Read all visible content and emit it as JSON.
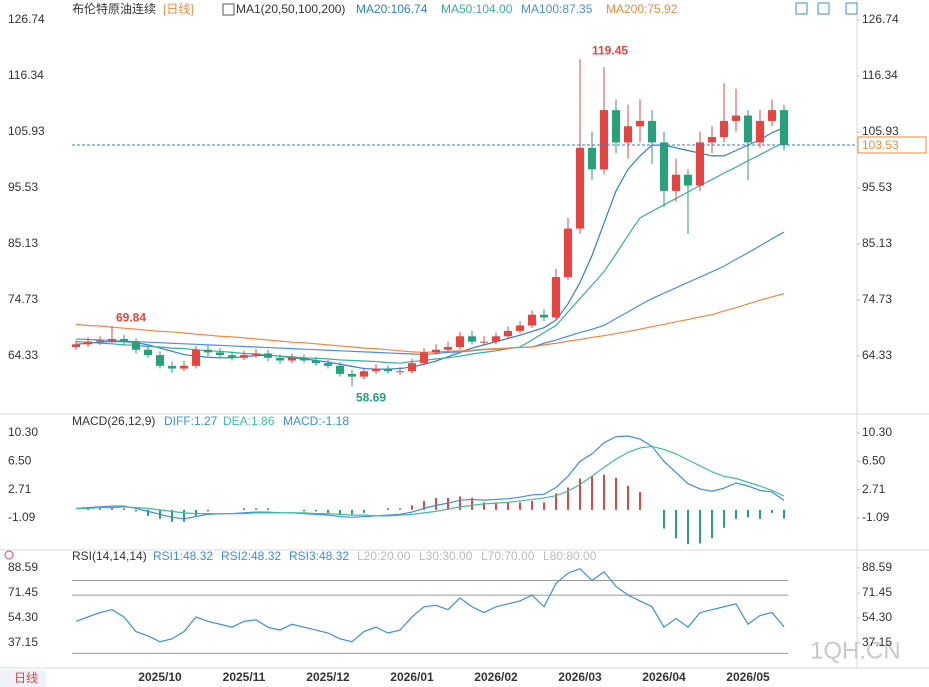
{
  "chart_data": {
    "type": "candlestick",
    "title": "布伦特原油连续",
    "period": "[日线]",
    "indicator": "MA1(20,50,100,200)",
    "categories": [
      null,
      null,
      null,
      null,
      null,
      null,
      null,
      "2025/10",
      null,
      null,
      null,
      null,
      null,
      null,
      "2025/11",
      null,
      null,
      null,
      null,
      null,
      null,
      "2025/12",
      null,
      null,
      null,
      null,
      null,
      null,
      "2026/01",
      null,
      null,
      null,
      null,
      null,
      null,
      "2026/02",
      null,
      null,
      null,
      null,
      null,
      null,
      "2026/03",
      null,
      null,
      null,
      null,
      null,
      null,
      "2026/04",
      null,
      null,
      null,
      null,
      null,
      null,
      "2026/05",
      null,
      null,
      null
    ],
    "open": [
      66,
      66.5,
      67,
      67.2,
      67.5,
      67,
      65.5,
      64.5,
      62.5,
      62,
      62.5,
      65.5,
      65,
      64.5,
      64,
      64.5,
      64.8,
      64,
      63.5,
      64,
      63.5,
      63,
      62.5,
      61,
      60.5,
      61.5,
      62,
      61.5,
      61.5,
      63,
      65,
      65.5,
      66,
      68,
      67,
      67,
      68,
      69,
      70,
      72,
      71.5,
      79,
      88,
      103,
      99,
      110,
      104,
      107,
      108,
      104,
      95,
      98,
      96,
      104,
      105,
      108,
      109,
      104,
      108,
      110
    ],
    "high": [
      67.2,
      67.8,
      68,
      69.84,
      68.2,
      67.6,
      66.2,
      65.2,
      63.3,
      63.4,
      66.2,
      66.3,
      65.8,
      65.2,
      65.3,
      65.6,
      65.5,
      64.6,
      64.8,
      64.6,
      64.2,
      63.6,
      63.2,
      61.8,
      62.2,
      62.8,
      62.6,
      62.3,
      63.8,
      65.8,
      66.5,
      67,
      68.8,
      69,
      68,
      68.7,
      69.8,
      70.8,
      72.8,
      73,
      80.5,
      90,
      119.45,
      106,
      118,
      112,
      111,
      112,
      110,
      106,
      101,
      99,
      106,
      107,
      115,
      114,
      110,
      110,
      112,
      111
    ],
    "low": [
      65.5,
      66,
      66.4,
      66.8,
      66.4,
      64.8,
      64,
      62,
      61.2,
      61.5,
      62,
      64.3,
      64,
      63.5,
      63.6,
      64,
      63.4,
      62.9,
      63,
      63,
      62.5,
      62,
      60.5,
      58.69,
      60,
      61,
      61,
      60.8,
      61,
      62.6,
      64.6,
      65,
      65.5,
      66.5,
      66.4,
      66.5,
      67.4,
      68.5,
      69.5,
      70.8,
      71,
      78.5,
      87,
      97,
      98,
      102,
      101,
      104,
      100,
      92,
      93,
      87,
      95,
      102,
      104,
      106,
      97,
      103,
      107,
      102.5
    ],
    "close": [
      66.5,
      67,
      67.2,
      67.5,
      67,
      65.5,
      64.5,
      62.5,
      62,
      62.5,
      65.5,
      65,
      64.5,
      64,
      64.5,
      64.8,
      64,
      63.5,
      64,
      63.5,
      63,
      62.5,
      61,
      60.5,
      61.5,
      62,
      61.5,
      61.5,
      63,
      65,
      65.5,
      66,
      68,
      67,
      67,
      68,
      69,
      70,
      72,
      71.5,
      79,
      88,
      103,
      99,
      110,
      104,
      107,
      108,
      104,
      95,
      98,
      96,
      104,
      105,
      108,
      109,
      104,
      108,
      110,
      103.53
    ],
    "up_color": "#e8433f",
    "down_color": "#26a27a",
    "ylim": [
      53.93,
      128.6
    ],
    "yticks": [
      126.74,
      116.34,
      105.93,
      95.53,
      85.13,
      74.73,
      64.33
    ],
    "ma": [
      {
        "name": "MA20:106.74",
        "color": "#2a7fd4",
        "values": [
          66.5,
          66.7,
          66.9,
          67.0,
          67.0,
          66.8,
          66.4,
          65.8,
          65.2,
          64.6,
          64.3,
          64.1,
          64.0,
          64.0,
          64.2,
          64.4,
          64.5,
          64.3,
          64.0,
          63.8,
          63.5,
          63.2,
          62.8,
          62.4,
          62.0,
          61.9,
          61.9,
          62.0,
          62.3,
          62.8,
          63.4,
          64.2,
          65.0,
          65.8,
          66.4,
          67.0,
          67.6,
          68.2,
          68.9,
          69.6,
          71.0,
          74.0,
          78.0,
          83.0,
          89.0,
          95.0,
          99.0,
          101.5,
          103.5,
          103.5,
          103.0,
          102.5,
          102.0,
          101.5,
          101.5,
          102.5,
          103.5,
          104.5,
          105.8,
          106.74
        ]
      },
      {
        "name": "MA50:104.00",
        "color": "#35b09a",
        "values": [
          67.0,
          66.9,
          66.7,
          66.6,
          66.4,
          66.3,
          66.1,
          66.0,
          65.8,
          65.7,
          65.5,
          65.3,
          65.2,
          65.0,
          64.8,
          64.7,
          64.5,
          64.3,
          64.2,
          64.0,
          63.9,
          63.8,
          63.6,
          63.5,
          63.4,
          63.3,
          63.1,
          63.0,
          63.3,
          63.5,
          63.8,
          64.0,
          64.3,
          64.7,
          65.0,
          65.3,
          65.7,
          66.0,
          67.3,
          68.7,
          70.0,
          72.5,
          75.0,
          77.5,
          80.0,
          83.3,
          86.7,
          90.0,
          91.2,
          92.4,
          93.6,
          94.8,
          96.0,
          97.1,
          98.3,
          99.4,
          100.6,
          101.7,
          102.9,
          104.0
        ]
      },
      {
        "name": "MA100:87.35",
        "color": "#4a90e2",
        "values": [
          67.5,
          67.4,
          67.3,
          67.2,
          67.1,
          67.0,
          66.9,
          66.8,
          66.7,
          66.6,
          66.5,
          66.4,
          66.3,
          66.2,
          66.1,
          66.0,
          65.9,
          65.8,
          65.7,
          65.6,
          65.5,
          65.4,
          65.3,
          65.2,
          65.1,
          65.0,
          64.9,
          64.8,
          64.7,
          64.6,
          64.8,
          65.0,
          65.1,
          65.3,
          65.5,
          65.6,
          65.8,
          65.9,
          66.0,
          66.7,
          67.3,
          68.0,
          68.7,
          69.3,
          70.0,
          71.3,
          72.5,
          73.8,
          75.0,
          76.0,
          77.0,
          78.0,
          79.0,
          80.0,
          81.0,
          82.3,
          83.5,
          84.8,
          86.1,
          87.35
        ]
      },
      {
        "name": "MA200:75.92",
        "color": "#f0883e",
        "values": [
          70.2,
          70.0,
          69.9,
          69.7,
          69.5,
          69.3,
          69.1,
          68.9,
          68.8,
          68.6,
          68.4,
          68.2,
          68.0,
          67.9,
          67.7,
          67.5,
          67.3,
          67.1,
          66.9,
          66.8,
          66.6,
          66.4,
          66.2,
          66.0,
          65.8,
          65.7,
          65.5,
          65.3,
          65.1,
          65.0,
          65.1,
          65.2,
          65.3,
          65.4,
          65.6,
          65.7,
          65.8,
          65.9,
          66.0,
          66.4,
          66.7,
          67.1,
          67.4,
          67.8,
          68.1,
          68.5,
          68.9,
          69.3,
          69.8,
          70.2,
          70.7,
          71.1,
          71.6,
          72.0,
          72.7,
          73.3,
          74.0,
          74.7,
          75.3,
          75.92
        ]
      }
    ],
    "macd": {
      "title": "MACD(26,12,9)",
      "ylim": [
        -5.11,
        12.31
      ],
      "yticks": [
        {
          "value": 10.3,
          "label": "10.30"
        },
        {
          "value": 6.5,
          "label": "6.50"
        },
        2.71,
        -1.09
      ],
      "series": [
        {
          "name": "DIFF:1.27",
          "color": "#3a8ee6",
          "values": [
            0.2,
            0.3,
            0.4,
            0.5,
            0.5,
            0.2,
            -0.2,
            -0.6,
            -1.0,
            -1.2,
            -0.9,
            -0.6,
            -0.5,
            -0.5,
            -0.4,
            -0.3,
            -0.3,
            -0.4,
            -0.4,
            -0.5,
            -0.6,
            -0.7,
            -0.9,
            -1.0,
            -0.9,
            -0.8,
            -0.7,
            -0.6,
            -0.3,
            0.2,
            0.6,
            0.9,
            1.3,
            1.4,
            1.3,
            1.4,
            1.5,
            1.7,
            2.0,
            2.1,
            3.0,
            4.5,
            6.5,
            7.5,
            9.0,
            9.8,
            9.9,
            9.5,
            8.5,
            6.5,
            5.0,
            3.5,
            2.8,
            2.5,
            2.9,
            3.6,
            3.2,
            2.6,
            2.4,
            1.27
          ]
        },
        {
          "name": "DEA:1.86",
          "color": "#3dbf9f",
          "values": [
            0.2,
            0.2,
            0.3,
            0.3,
            0.4,
            0.3,
            0.2,
            0.0,
            -0.2,
            -0.4,
            -0.5,
            -0.5,
            -0.5,
            -0.5,
            -0.5,
            -0.4,
            -0.4,
            -0.4,
            -0.4,
            -0.4,
            -0.5,
            -0.5,
            -0.6,
            -0.7,
            -0.7,
            -0.8,
            -0.8,
            -0.7,
            -0.6,
            -0.4,
            -0.2,
            0.1,
            0.4,
            0.6,
            0.8,
            0.9,
            1.0,
            1.2,
            1.4,
            1.6,
            1.9,
            2.5,
            3.4,
            4.5,
            5.7,
            6.8,
            7.7,
            8.3,
            8.5,
            8.1,
            7.5,
            6.7,
            5.9,
            5.1,
            4.5,
            4.2,
            3.7,
            3.2,
            2.6,
            1.86
          ]
        }
      ],
      "histogram": {
        "name": "MACD:-1.18",
        "values": [
          0,
          0.2,
          0.2,
          0.4,
          0.2,
          -0.2,
          -0.8,
          -1.2,
          -1.6,
          -1.6,
          -0.8,
          -0.2,
          0,
          0,
          0.2,
          0.2,
          0.2,
          0,
          0,
          -0.2,
          -0.2,
          -0.4,
          -0.6,
          -0.6,
          -0.4,
          0,
          0.2,
          0.2,
          0.6,
          1.2,
          1.6,
          1.6,
          1.8,
          1.6,
          1.0,
          1.0,
          1.0,
          1.0,
          1.2,
          1.0,
          2.2,
          3.0,
          4.2,
          4.5,
          4.7,
          4.3,
          3.2,
          2.4,
          0,
          -2.5,
          -3.8,
          -4.6,
          -4.5,
          -3.8,
          -2.4,
          -1.2,
          -1.0,
          -1.2,
          -0.4,
          -1.18
        ]
      }
    },
    "rsi": {
      "title": "RSI(14,14,14)",
      "legend": [
        "RSI1:48.32",
        "RSI2:48.32",
        "RSI3:48.32"
      ],
      "levels": [
        {
          "value": 20,
          "label": "L20:20.00"
        },
        {
          "value": 30,
          "label": "L30:30.00"
        },
        {
          "value": 70,
          "label": "L70:70.00"
        },
        {
          "value": 80,
          "label": "L80:80.00"
        }
      ],
      "ylim": [
        22.07,
        98.87
      ],
      "yticks": [
        88.59,
        71.45,
        {
          "value": 54.3,
          "label": "54.30"
        },
        37.15
      ],
      "color": "#3a8ee6",
      "values": [
        52,
        55,
        58,
        60,
        55,
        45,
        42,
        38,
        40,
        45,
        55,
        52,
        50,
        48,
        52,
        53,
        48,
        46,
        50,
        48,
        46,
        44,
        40,
        38,
        45,
        48,
        44,
        46,
        55,
        62,
        63,
        60,
        68,
        62,
        58,
        62,
        64,
        66,
        70,
        62,
        78,
        85,
        88,
        80,
        86,
        76,
        70,
        66,
        62,
        48,
        54,
        48,
        58,
        60,
        62,
        64,
        50,
        56,
        58,
        48.32
      ]
    },
    "watermark": "1QH.CN",
    "period_button": "日线"
  }
}
